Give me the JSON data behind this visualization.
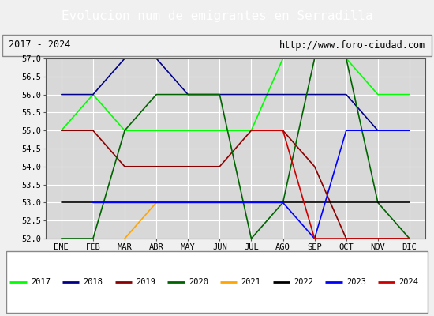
{
  "title": "Evolucion num de emigrantes en Serradilla",
  "subtitle_left": "2017 - 2024",
  "subtitle_right": "http://www.foro-ciudad.com",
  "ylim": [
    52.0,
    57.0
  ],
  "yticks": [
    52.0,
    52.5,
    53.0,
    53.5,
    54.0,
    54.5,
    55.0,
    55.5,
    56.0,
    56.5,
    57.0
  ],
  "months": [
    "ENE",
    "FEB",
    "MAR",
    "ABR",
    "MAY",
    "JUN",
    "JUL",
    "AGO",
    "SEP",
    "OCT",
    "NOV",
    "DIC"
  ],
  "series": [
    {
      "year": "2017",
      "color": "#00ff00",
      "x": [
        1,
        2,
        3,
        4,
        5,
        6,
        7,
        8,
        9,
        10,
        11,
        12
      ],
      "y": [
        55.0,
        56.0,
        55.0,
        55.0,
        55.0,
        55.0,
        55.0,
        57.0,
        57.0,
        57.0,
        56.0,
        56.0
      ]
    },
    {
      "year": "2018",
      "color": "#00008b",
      "x": [
        1,
        2,
        3,
        4,
        5,
        6,
        7,
        8,
        9,
        10,
        11,
        12
      ],
      "y": [
        56.0,
        56.0,
        57.0,
        57.0,
        56.0,
        56.0,
        56.0,
        56.0,
        56.0,
        56.0,
        55.0,
        55.0
      ]
    },
    {
      "year": "2019",
      "color": "#8b0000",
      "x": [
        1,
        2,
        3,
        4,
        5,
        6,
        7,
        8,
        9,
        10,
        11,
        12
      ],
      "y": [
        55.0,
        55.0,
        54.0,
        54.0,
        54.0,
        54.0,
        55.0,
        55.0,
        54.0,
        52.0,
        52.0,
        52.0
      ]
    },
    {
      "year": "2020",
      "color": "#006400",
      "x": [
        1,
        2,
        3,
        4,
        5,
        6,
        7,
        8,
        9,
        10,
        11,
        12
      ],
      "y": [
        52.0,
        52.0,
        55.0,
        56.0,
        56.0,
        56.0,
        52.0,
        53.0,
        57.0,
        57.0,
        53.0,
        52.0
      ]
    },
    {
      "year": "2021",
      "color": "#ffa500",
      "x": [
        3,
        4
      ],
      "y": [
        52.0,
        53.0
      ]
    },
    {
      "year": "2022",
      "color": "#000000",
      "x": [
        1,
        12
      ],
      "y": [
        53.0,
        53.0
      ]
    },
    {
      "year": "2023",
      "color": "#0000ff",
      "x": [
        2,
        3,
        4,
        8,
        9,
        10,
        11,
        12
      ],
      "y": [
        53.0,
        53.0,
        53.0,
        53.0,
        52.0,
        55.0,
        55.0,
        55.0
      ]
    },
    {
      "year": "2024",
      "color": "#cc0000",
      "x": [
        7,
        8,
        9,
        10,
        11,
        12
      ],
      "y": [
        55.0,
        55.0,
        52.0,
        52.0,
        52.0,
        52.0
      ]
    }
  ],
  "title_bg_color": "#4472c4",
  "title_font_color": "#ffffff",
  "plot_bg_color": "#d8d8d8",
  "grid_color": "#ffffff",
  "legend_years": [
    "2017",
    "2018",
    "2019",
    "2020",
    "2021",
    "2022",
    "2023",
    "2024"
  ],
  "legend_colors": [
    "#00ff00",
    "#00008b",
    "#8b0000",
    "#006400",
    "#ffa500",
    "#000000",
    "#0000ff",
    "#cc0000"
  ]
}
